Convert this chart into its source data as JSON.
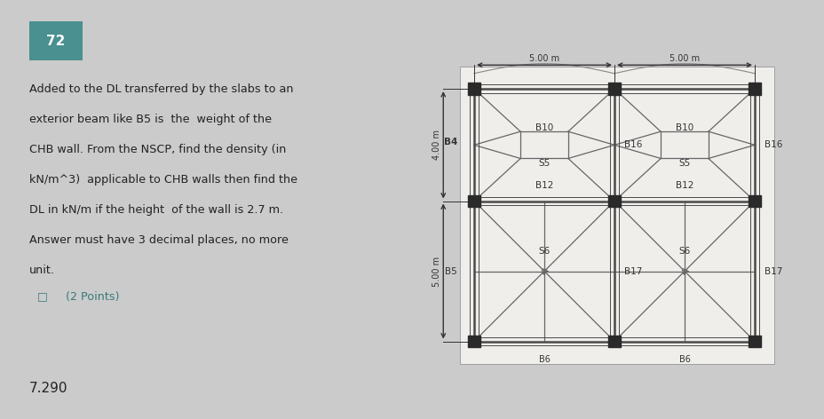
{
  "bg_color": "#cbcbcb",
  "diagram_bg": "#f0eeeb",
  "title_box_color": "#4a9090",
  "title_text": "72",
  "question_lines": [
    "Added to the DL transferred by the slabs to an",
    "exterior beam like B5 is  the  weight of the",
    "CHB wall. From the NSCP, find the density (in",
    "kN/m^3)  applicable to CHB walls then find the",
    "DL in kN/m if the height  of the wall is 2.7 m.",
    "Answer must have 3 decimal places, no more",
    "unit."
  ],
  "points_text": "(2 Points)",
  "answer_text": "7.290",
  "dim_top1": "5.00 m",
  "dim_top2": "5.00 m",
  "dim_left1": "4.00 m",
  "dim_left2": "5.00 m",
  "beam_color": "#4a4a4a",
  "node_color": "#2a2a2a",
  "slab_color": "#666666",
  "dim_color": "#333333",
  "text_color": "#333333",
  "label_fontsize": 7.5,
  "dim_fontsize": 7.0
}
